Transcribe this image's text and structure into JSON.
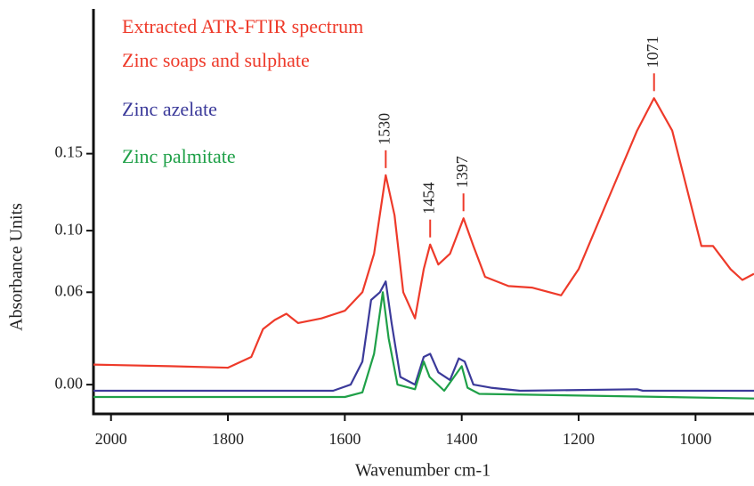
{
  "chart_data": {
    "type": "line",
    "title": "Extracted ATR-FTIR spectrum",
    "title_color": "#ee3a2a",
    "xlabel": "Wavenumber cm-1",
    "ylabel": "Absorbance Units",
    "xlim": [
      2030,
      900
    ],
    "ylim": [
      -0.019,
      0.244
    ],
    "xticks": [
      2000,
      1800,
      1600,
      1400,
      1200,
      1000
    ],
    "yticks": [
      {
        "value": 0,
        "label": "0.00"
      },
      0.06,
      {
        "value": 0.1,
        "label": "0.10"
      },
      0.15
    ],
    "series": [
      {
        "name": "Zinc soaps and sulphate",
        "color": "#ee3a2a",
        "x": [
          2030,
          1900,
          1800,
          1760,
          1740,
          1720,
          1700,
          1680,
          1640,
          1600,
          1570,
          1550,
          1530,
          1515,
          1500,
          1480,
          1465,
          1454,
          1440,
          1420,
          1397,
          1380,
          1360,
          1320,
          1280,
          1230,
          1200,
          1150,
          1100,
          1071,
          1040,
          1010,
          990,
          970,
          940,
          920,
          900
        ],
        "values": [
          0.013,
          0.012,
          0.011,
          0.018,
          0.036,
          0.042,
          0.046,
          0.04,
          0.043,
          0.048,
          0.06,
          0.085,
          0.136,
          0.11,
          0.06,
          0.043,
          0.075,
          0.091,
          0.078,
          0.085,
          0.108,
          0.09,
          0.07,
          0.064,
          0.063,
          0.058,
          0.075,
          0.12,
          0.165,
          0.186,
          0.165,
          0.12,
          0.09,
          0.09,
          0.075,
          0.068,
          0.072
        ]
      },
      {
        "name": "Zinc azelate",
        "color": "#3b3a9a",
        "x": [
          2030,
          1620,
          1590,
          1570,
          1555,
          1540,
          1530,
          1520,
          1505,
          1480,
          1465,
          1454,
          1440,
          1420,
          1405,
          1395,
          1380,
          1350,
          1300,
          1100,
          1090,
          900
        ],
        "values": [
          -0.004,
          -0.004,
          0.0,
          0.015,
          0.055,
          0.06,
          0.067,
          0.04,
          0.005,
          0.0,
          0.018,
          0.02,
          0.008,
          0.003,
          0.017,
          0.015,
          0.0,
          -0.002,
          -0.004,
          -0.003,
          -0.004,
          -0.004
        ]
      },
      {
        "name": "Zinc palmitate",
        "color": "#1fa048",
        "x": [
          2030,
          1600,
          1570,
          1550,
          1535,
          1525,
          1510,
          1480,
          1465,
          1455,
          1430,
          1400,
          1390,
          1370,
          900
        ],
        "values": [
          -0.008,
          -0.008,
          -0.005,
          0.02,
          0.06,
          0.03,
          0.0,
          -0.003,
          0.015,
          0.005,
          -0.004,
          0.012,
          -0.002,
          -0.006,
          -0.009
        ]
      }
    ],
    "annotations": [
      {
        "text": "1530",
        "x": 1530,
        "y": 0.136
      },
      {
        "text": "1454",
        "x": 1454,
        "y": 0.091
      },
      {
        "text": "1397",
        "x": 1397,
        "y": 0.108
      },
      {
        "text": "1071",
        "x": 1071,
        "y": 0.186
      }
    ]
  }
}
